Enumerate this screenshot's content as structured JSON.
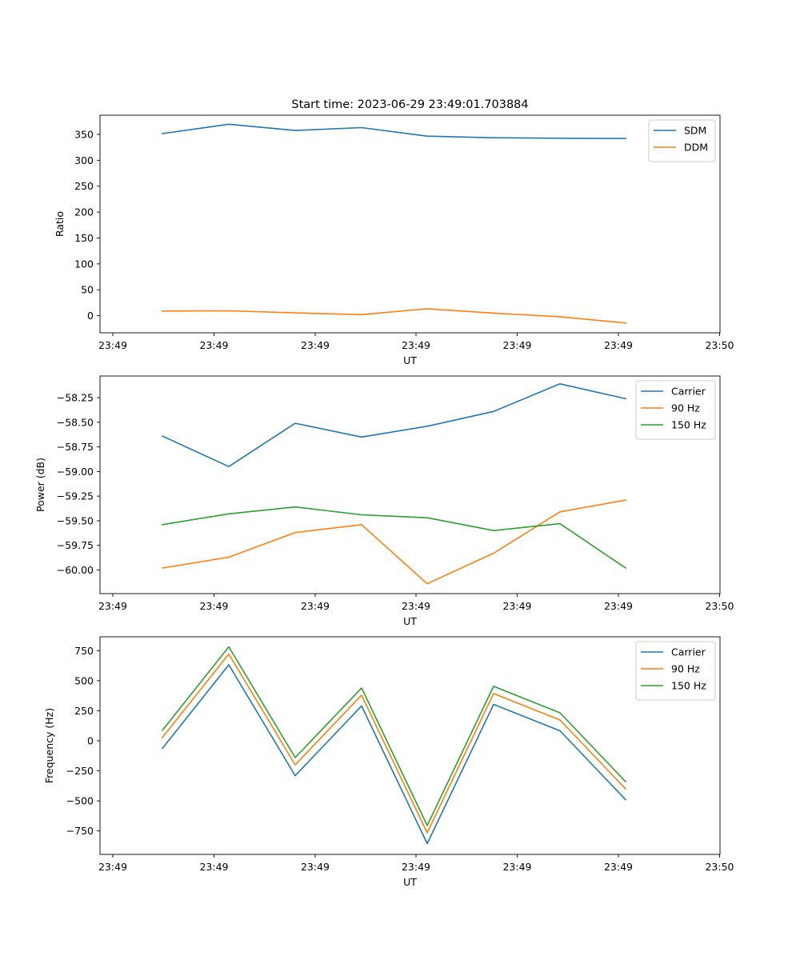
{
  "title": "Start time: 2023-06-29 23:49:01.703884",
  "chart_data": [
    {
      "type": "line",
      "xlabel": "UT",
      "ylabel": "Ratio",
      "x_tick_labels": [
        "23:49",
        "23:49",
        "23:49",
        "23:49",
        "23:49",
        "23:49",
        "23:50"
      ],
      "ylim": [
        -33,
        387
      ],
      "y_ticks": [
        0,
        50,
        100,
        150,
        200,
        250,
        300,
        350
      ],
      "y_tick_labels": [
        "0",
        "50",
        "100",
        "150",
        "200",
        "250",
        "300",
        "350"
      ],
      "legend_position": "top-right",
      "grid": false,
      "series": [
        {
          "name": "SDM",
          "color": "#1f77b4",
          "values": [
            351.5,
            369.5,
            357.5,
            363,
            346.5,
            343.5,
            342.5,
            342
          ]
        },
        {
          "name": "DDM",
          "color": "#ff7f0e",
          "values": [
            9,
            9.5,
            5.5,
            2,
            13.5,
            5,
            -2,
            -14
          ]
        }
      ]
    },
    {
      "type": "line",
      "xlabel": "UT",
      "ylabel": "Power (dB)",
      "x_tick_labels": [
        "23:49",
        "23:49",
        "23:49",
        "23:49",
        "23:49",
        "23:49",
        "23:50"
      ],
      "ylim": [
        -60.24,
        -58.03
      ],
      "y_ticks": [
        -60.0,
        -59.75,
        -59.5,
        -59.25,
        -59.0,
        -58.75,
        -58.5,
        -58.25
      ],
      "y_tick_labels": [
        "−60.00",
        "−59.75",
        "−59.50",
        "−59.25",
        "−59.00",
        "−58.75",
        "−58.50",
        "−58.25"
      ],
      "legend_position": "top-right",
      "grid": false,
      "series": [
        {
          "name": "Carrier",
          "color": "#1f77b4",
          "values": [
            -58.64,
            -58.95,
            -58.51,
            -58.65,
            -58.54,
            -58.39,
            -58.11,
            -58.26
          ]
        },
        {
          "name": "90 Hz",
          "color": "#ff7f0e",
          "values": [
            -59.98,
            -59.87,
            -59.62,
            -59.54,
            -60.14,
            -59.83,
            -59.41,
            -59.29
          ]
        },
        {
          "name": "150 Hz",
          "color": "#2ca02c",
          "values": [
            -59.54,
            -59.43,
            -59.36,
            -59.44,
            -59.47,
            -59.6,
            -59.53,
            -59.98
          ]
        }
      ]
    },
    {
      "type": "line",
      "xlabel": "UT",
      "ylabel": "Frequency (Hz)",
      "x_tick_labels": [
        "23:49",
        "23:49",
        "23:49",
        "23:49",
        "23:49",
        "23:49",
        "23:50"
      ],
      "ylim": [
        -945,
        865
      ],
      "y_ticks": [
        -750,
        -500,
        -250,
        0,
        250,
        500,
        750
      ],
      "y_tick_labels": [
        "−750",
        "−500",
        "−250",
        "0",
        "250",
        "500",
        "750"
      ],
      "legend_position": "top-right",
      "grid": false,
      "series": [
        {
          "name": "Carrier",
          "color": "#1f77b4",
          "values": [
            -63,
            632,
            -290,
            290,
            -855,
            303,
            83,
            -490
          ]
        },
        {
          "name": "90 Hz",
          "color": "#ff7f0e",
          "values": [
            27,
            722,
            -200,
            380,
            -765,
            393,
            173,
            -400
          ]
        },
        {
          "name": "150 Hz",
          "color": "#2ca02c",
          "values": [
            87,
            782,
            -140,
            440,
            -705,
            453,
            233,
            -340
          ]
        }
      ]
    }
  ]
}
